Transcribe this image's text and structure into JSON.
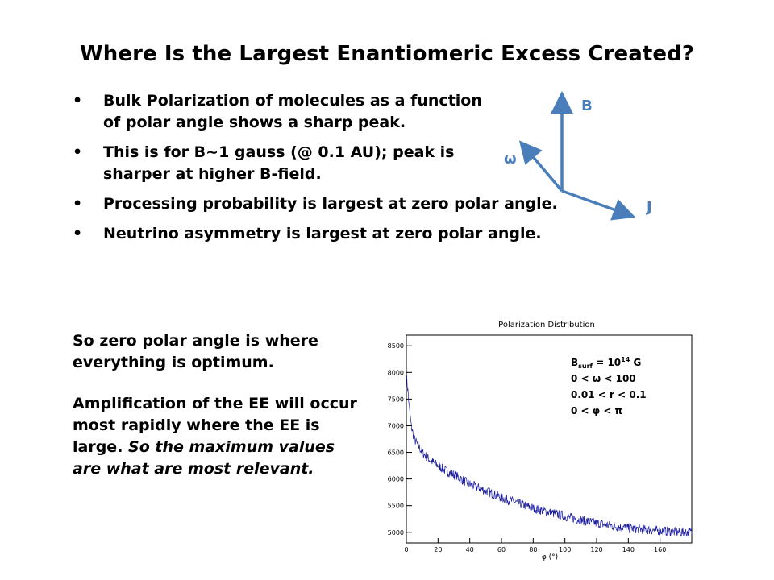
{
  "slide": {
    "title": "Where Is the Largest Enantiomeric Excess Created?",
    "bullets": [
      "Bulk Polarization of molecules as a function of polar angle shows a sharp peak.",
      "This is for B~1 gauss (@ 0.1 AU); peak is sharper at higher B-field.",
      "Processing probability is largest at zero polar angle.",
      "Neutrino asymmetry is largest at zero polar angle."
    ],
    "bullet_char": "•",
    "para1": "So zero polar angle is where everything is optimum.",
    "para2_normal": "Amplification of the EE will occur most rapidly where the EE is large. ",
    "para2_italic": "So the maximum values are what are most relevant."
  },
  "vector_diagram": {
    "label_b": "B",
    "label_omega": "ω",
    "label_j": "J",
    "color": "#4a7ebb"
  },
  "chart_data": {
    "type": "line",
    "title": "Polarization Distribution",
    "xlabel": "φ (°)",
    "ylabel": "",
    "xlim": [
      0,
      180
    ],
    "ylim": [
      4800,
      8700
    ],
    "xticks": [
      0,
      20,
      40,
      60,
      80,
      100,
      120,
      140,
      160
    ],
    "yticks": [
      5000,
      5500,
      6000,
      6500,
      7000,
      7500,
      8000,
      8500
    ],
    "legend_lines": [
      "B_surf = 10^14 G",
      "0 < ω < 100",
      "0.01 < r < 0.1",
      "0 < φ < π"
    ],
    "series_color": "#1a1aa0",
    "series": [
      {
        "x": [
          0,
          1,
          2,
          3,
          5,
          8,
          10,
          15,
          20,
          25,
          30,
          40,
          50,
          60,
          70,
          80,
          90,
          100,
          110,
          120,
          130,
          140,
          150,
          160,
          170,
          180
        ],
        "values": [
          7950,
          7650,
          7300,
          7000,
          6750,
          6600,
          6500,
          6350,
          6250,
          6150,
          6080,
          5900,
          5780,
          5650,
          5550,
          5450,
          5380,
          5300,
          5230,
          5170,
          5120,
          5080,
          5050,
          5030,
          5000,
          5000
        ]
      }
    ]
  }
}
